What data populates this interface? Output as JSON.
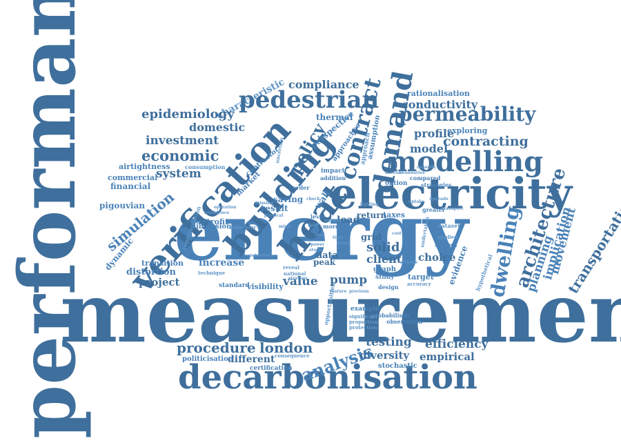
{
  "colors": {
    "dark": "#3f6f9c",
    "mid": "#4a82b8",
    "light": "#5f95c6",
    "background": "#ffffff"
  },
  "words": {
    "performance": "performance",
    "measurement": "measurement",
    "energy": "energy",
    "decarbonisation": "decarbonisation",
    "electricity": "electricity",
    "verification": "verification",
    "building": "building",
    "heat": "heat",
    "modelling": "modelling",
    "demand": "demand",
    "contract": "contract",
    "pedestrian": "pedestrian",
    "permeability": "permeability",
    "dwelling": "dwelling",
    "architecture": "architecture",
    "economic": "economic",
    "investment": "investment",
    "epidemiology": "epidemiology",
    "domestic": "domestic",
    "compliance": "compliance",
    "conductivity": "conductivity",
    "rationalisation": "rationalisation",
    "thermal": "thermal",
    "characteristic": "characteristic",
    "profile": "profile",
    "exploring": "exploring",
    "contracting": "contracting",
    "model": "model",
    "system": "system",
    "airtightness": "airtightness",
    "commercial": "commercial",
    "financial": "financial",
    "pigouvian": "pigouvian",
    "simulation": "simulation",
    "dynamic": "dynamic",
    "transition": "transition",
    "distortion": "distortion",
    "project": "project",
    "increase": "increase",
    "retrofit": "retrofit",
    "result": "result",
    "dimension": "dimension",
    "value": "value",
    "pump": "pump",
    "solid": "solid",
    "client": "client",
    "data": "data",
    "load": "load",
    "return": "return",
    "taxes": "taxes",
    "grid": "grid",
    "peak": "peak",
    "visibility": "visibility",
    "standard": "standard",
    "choice": "choice",
    "evidence": "evidence",
    "target": "target",
    "planning": "planning",
    "movement": "movement",
    "implication": "implication",
    "transportation": "transportation",
    "procedure": "procedure",
    "london": "london",
    "analysis": "analysis",
    "testing": "testing",
    "efficiency": "efficiency",
    "empirical": "empirical",
    "diversity": "diversity",
    "different": "different",
    "politicisation": "politicisation",
    "stochastic": "stochastic",
    "probabilistic": "probabilistic",
    "observation": "observation",
    "policy": "policy",
    "perspective": "perspective",
    "approaches": "approaches",
    "market": "market",
    "saving": "saving",
    "wall": "wall",
    "impact": "impact",
    "addition": "addition",
    "consumption": "consumption",
    "contractor": "contractor",
    "option": "option",
    "compared": "compared",
    "strategies": "strategies",
    "assumption": "assumption",
    "approach": "approach",
    "school": "school",
    "dataset": "dataset",
    "greater": "greater",
    "applied": "applied",
    "hypothetical": "hypothetical",
    "design": "design",
    "graph": "graph",
    "study": "study",
    "accuracy": "accuracy",
    "certification": "certification",
    "consequence": "consequence",
    "opportunities": "opportunities",
    "example": "example",
    "significant": "significant",
    "proportion": "proportion",
    "protection": "protection",
    "feature": "feature",
    "previous": "previous",
    "level": "level",
    "order": "order",
    "excess": "excess",
    "behaviour": "behaviour",
    "representation": "representation",
    "technique": "technique",
    "national": "national",
    "strategy": "strategy",
    "reveal": "reveal",
    "potential": "potential",
    "operation": "operation",
    "confidence": "confidence",
    "missing": "missing",
    "physical": "physical",
    "more": "more",
    "field": "field",
    "land": "land",
    "time": "time",
    "green": "green",
    "stock": "stock",
    "power": "power",
    "check": "check",
    "upgrade": "upgrade",
    "transport": "transport",
    "undertaken": "undertaken",
    "scheme": "scheme",
    "cost": "cost",
    "uncertain": "uncertain",
    "boundaries": "boundaries",
    "account": "account",
    "capacity": "capacity",
    "lighting": "lighting",
    "uptake": "uptake",
    "mind": "mind"
  }
}
